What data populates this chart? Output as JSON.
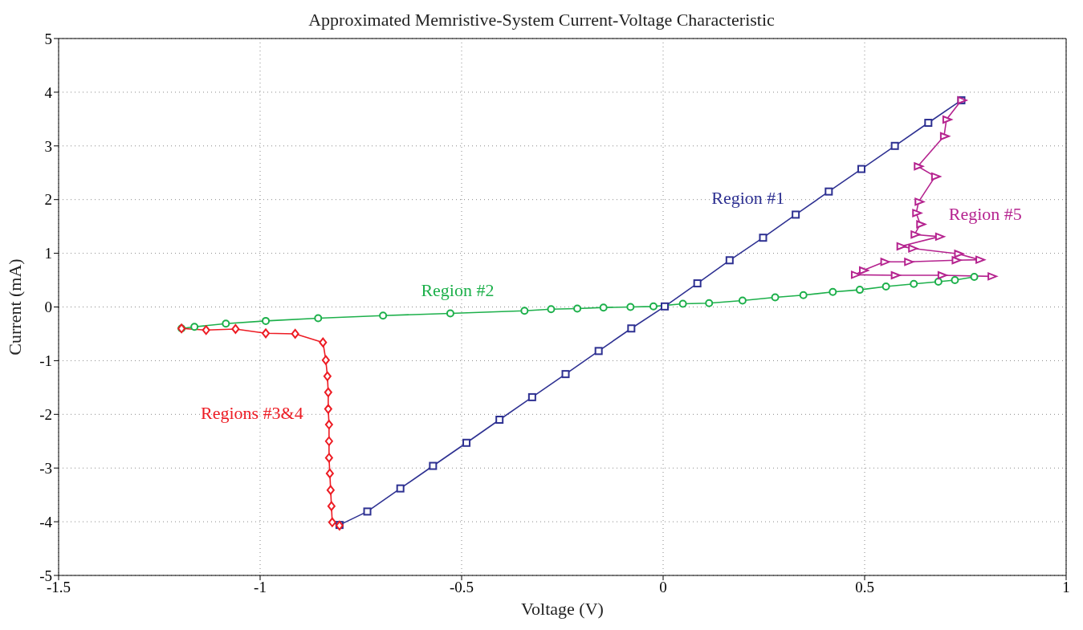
{
  "chart_data": {
    "type": "line",
    "title": "Approximated Memristive-System Current-Voltage Characteristic",
    "xlabel": "Voltage (V)",
    "ylabel": "Current (mA)",
    "xlim": [
      -1.5,
      1
    ],
    "xticks": [
      -1.5,
      -1,
      -0.5,
      0,
      0.5,
      1
    ],
    "ylim": [
      -5,
      5
    ],
    "yticks": [
      -5,
      -4,
      -3,
      -2,
      -1,
      0,
      1,
      2,
      3,
      4,
      5
    ],
    "grid": true,
    "series": [
      {
        "name": "Region #1",
        "color": "#2e3192",
        "marker": "square",
        "x": [
          0.74,
          0.658,
          0.575,
          0.492,
          0.411,
          0.329,
          0.248,
          0.165,
          0.085,
          0.004,
          -0.079,
          -0.16,
          -0.242,
          -0.325,
          -0.406,
          -0.488,
          -0.571,
          -0.652,
          -0.734,
          -0.803
        ],
        "values": [
          3.85,
          3.43,
          3.0,
          2.57,
          2.15,
          1.72,
          1.29,
          0.87,
          0.44,
          0.01,
          -0.4,
          -0.82,
          -1.25,
          -1.68,
          -2.1,
          -2.53,
          -2.96,
          -3.38,
          -3.81,
          -4.06
        ]
      },
      {
        "name": "Region #2",
        "color": "#1db04b",
        "marker": "circle",
        "x": [
          -1.195,
          -1.163,
          -1.085,
          -0.986,
          -0.856,
          -0.695,
          -0.528,
          -0.344,
          -0.278,
          -0.213,
          -0.148,
          -0.081,
          -0.024,
          0.049,
          0.114,
          0.197,
          0.278,
          0.348,
          0.421,
          0.488,
          0.553,
          0.622,
          0.683,
          0.724,
          0.772
        ],
        "values": [
          -0.4,
          -0.37,
          -0.31,
          -0.26,
          -0.21,
          -0.16,
          -0.12,
          -0.07,
          -0.04,
          -0.03,
          -0.01,
          0.0,
          0.01,
          0.06,
          0.07,
          0.12,
          0.18,
          0.22,
          0.28,
          0.32,
          0.38,
          0.43,
          0.47,
          0.5,
          0.56
        ]
      },
      {
        "name": "Regions #3&4",
        "color": "#ed1c24",
        "marker": "diamond",
        "x": [
          -1.195,
          -1.134,
          -1.061,
          -0.986,
          -0.913,
          -0.844,
          -0.837,
          -0.833,
          -0.831,
          -0.831,
          -0.829,
          -0.829,
          -0.829,
          -0.827,
          -0.825,
          -0.823,
          -0.821,
          -0.803
        ],
        "values": [
          -0.4,
          -0.43,
          -0.41,
          -0.49,
          -0.5,
          -0.66,
          -0.99,
          -1.29,
          -1.59,
          -1.9,
          -2.19,
          -2.5,
          -2.81,
          -3.1,
          -3.41,
          -3.71,
          -4.01,
          -4.07
        ]
      },
      {
        "name": "Region #5",
        "color": "#b5238f",
        "marker": "triangle",
        "x": [
          0.74,
          0.703,
          0.697,
          0.632,
          0.675,
          0.634,
          0.628,
          0.638,
          0.624,
          0.685,
          0.589,
          0.618,
          0.732,
          0.785,
          0.726,
          0.608,
          0.549,
          0.496,
          0.476,
          0.575,
          0.691,
          0.815
        ],
        "values": [
          3.85,
          3.49,
          3.18,
          2.62,
          2.43,
          1.96,
          1.75,
          1.54,
          1.35,
          1.31,
          1.13,
          1.09,
          0.99,
          0.88,
          0.87,
          0.84,
          0.84,
          0.68,
          0.6,
          0.59,
          0.59,
          0.57
        ]
      }
    ]
  }
}
